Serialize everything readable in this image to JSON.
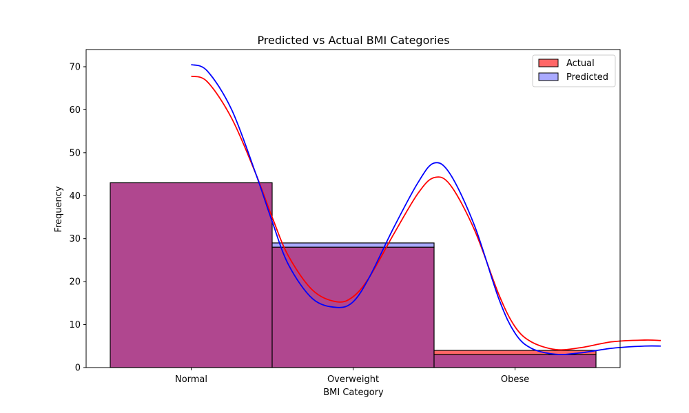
{
  "chart_data": {
    "type": "bar",
    "title": "Predicted vs Actual BMI Categories",
    "xlabel": "BMI Category",
    "ylabel": "Frequency",
    "categories": [
      "Normal",
      "Overweight",
      "Obese"
    ],
    "ylim": [
      0,
      74
    ],
    "yticks": [
      0,
      10,
      20,
      30,
      40,
      50,
      60,
      70
    ],
    "legend_position": "top-right",
    "series": [
      {
        "name": "Actual",
        "values": [
          43,
          28,
          4
        ],
        "color": "#ff0000",
        "kde": [
          [
            0,
            67.8
          ],
          [
            0.1,
            66.5
          ],
          [
            0.25,
            58
          ],
          [
            0.4,
            45
          ],
          [
            0.5,
            35
          ],
          [
            0.6,
            26
          ],
          [
            0.75,
            18
          ],
          [
            0.9,
            15.3
          ],
          [
            1.0,
            16.5
          ],
          [
            1.1,
            21
          ],
          [
            1.25,
            31
          ],
          [
            1.4,
            40.5
          ],
          [
            1.5,
            44.2
          ],
          [
            1.6,
            42.5
          ],
          [
            1.75,
            32
          ],
          [
            1.9,
            17
          ],
          [
            2.0,
            9.5
          ],
          [
            2.1,
            6
          ],
          [
            2.25,
            4.2
          ],
          [
            2.4,
            4.6
          ],
          [
            2.6,
            6.0
          ],
          [
            2.8,
            6.4
          ],
          [
            2.9,
            6.3
          ]
        ]
      },
      {
        "name": "Predicted",
        "values": [
          43,
          29,
          3
        ],
        "color": "#0000ff",
        "kde": [
          [
            0,
            70.5
          ],
          [
            0.1,
            69
          ],
          [
            0.25,
            60
          ],
          [
            0.4,
            45
          ],
          [
            0.5,
            34
          ],
          [
            0.6,
            24
          ],
          [
            0.75,
            16
          ],
          [
            0.9,
            14
          ],
          [
            1.0,
            15.3
          ],
          [
            1.1,
            21
          ],
          [
            1.25,
            32.5
          ],
          [
            1.4,
            43
          ],
          [
            1.5,
            47.6
          ],
          [
            1.6,
            45
          ],
          [
            1.75,
            33
          ],
          [
            1.9,
            16
          ],
          [
            2.0,
            8
          ],
          [
            2.1,
            4.5
          ],
          [
            2.25,
            3.1
          ],
          [
            2.4,
            3.4
          ],
          [
            2.6,
            4.5
          ],
          [
            2.8,
            5.0
          ],
          [
            2.9,
            5.0
          ]
        ]
      }
    ],
    "overlap_color": "#b0478f",
    "actual_only_color": "#ff6666",
    "predicted_only_color": "#aaaaff"
  }
}
